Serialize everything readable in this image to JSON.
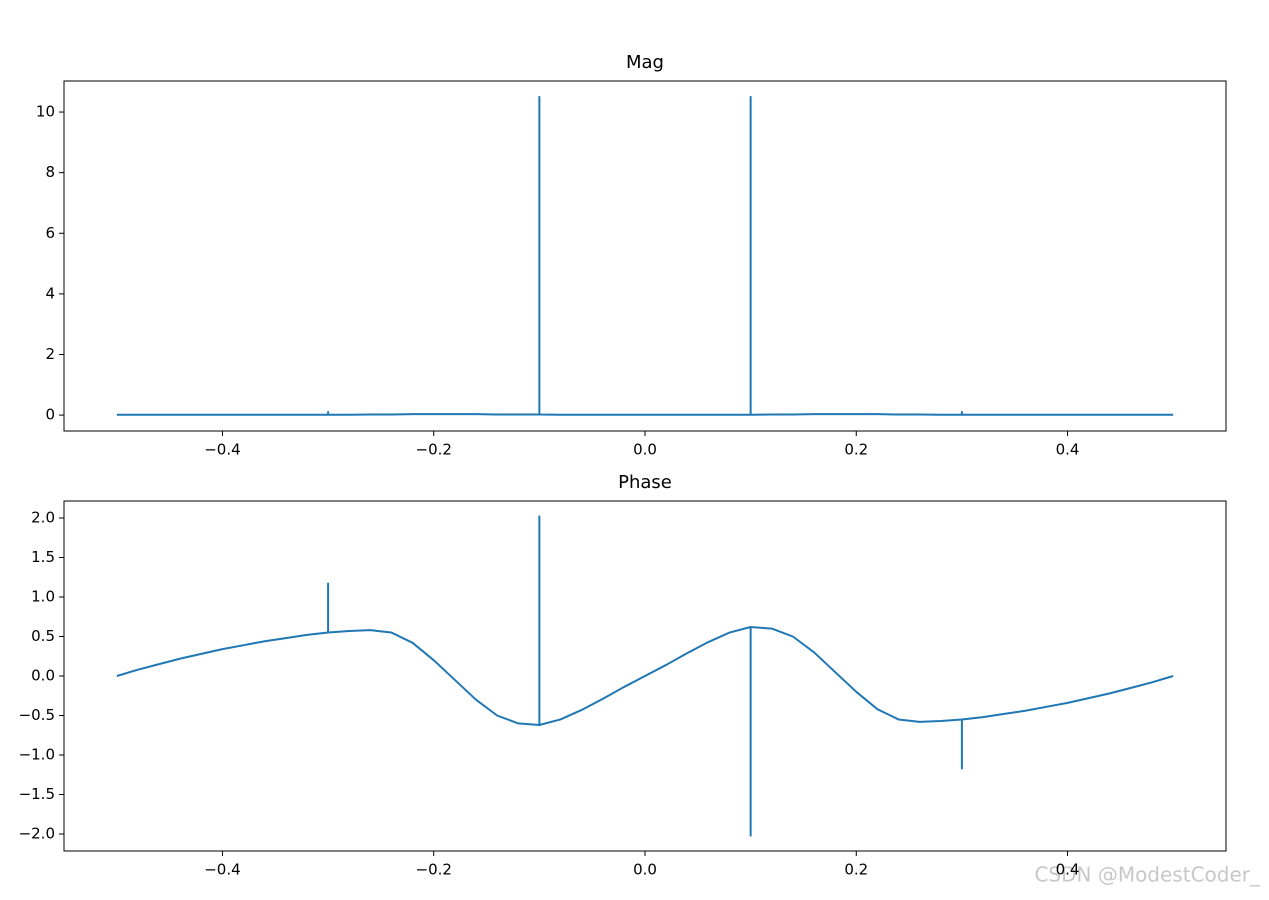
{
  "chart_data": [
    {
      "type": "line",
      "title": "Mag",
      "color": "#1f77b4",
      "x": [
        -0.5,
        -0.48,
        -0.46,
        -0.44,
        -0.42,
        -0.4,
        -0.38,
        -0.36,
        -0.34,
        -0.32,
        -0.3,
        -0.3,
        -0.3,
        -0.28,
        -0.26,
        -0.24,
        -0.22,
        -0.2,
        -0.18,
        -0.16,
        -0.14,
        -0.12,
        -0.1,
        -0.1,
        -0.1,
        -0.08,
        -0.06,
        -0.04,
        -0.02,
        0,
        0.02,
        0.04,
        0.06,
        0.08,
        0.1,
        0.1,
        0.1,
        0.12,
        0.14,
        0.16,
        0.18,
        0.2,
        0.22,
        0.24,
        0.26,
        0.28,
        0.3,
        0.3,
        0.3,
        0.32,
        0.34,
        0.36,
        0.38,
        0.4,
        0.42,
        0.44,
        0.46,
        0.48,
        0.5
      ],
      "values": [
        0.01,
        0.01,
        0.01,
        0.01,
        0.01,
        0.01,
        0.01,
        0.01,
        0.01,
        0.01,
        0.01,
        0.1,
        0.01,
        0.01,
        0.02,
        0.02,
        0.03,
        0.03,
        0.03,
        0.03,
        0.02,
        0.02,
        0.02,
        10.5,
        0.02,
        0.01,
        0.01,
        0.01,
        0.01,
        0.01,
        0.01,
        0.01,
        0.01,
        0.01,
        0.01,
        10.5,
        0.01,
        0.02,
        0.02,
        0.03,
        0.03,
        0.03,
        0.03,
        0.02,
        0.02,
        0.01,
        0.01,
        0.1,
        0.01,
        0.01,
        0.01,
        0.01,
        0.01,
        0.01,
        0.01,
        0.01,
        0.01,
        0.01,
        0.01
      ],
      "xlim": [
        -0.55,
        0.55
      ],
      "xticks": [
        {
          "value": -0.4,
          "label": "−0.4"
        },
        {
          "value": -0.2,
          "label": "−0.2"
        },
        {
          "value": 0,
          "label": "0.0"
        },
        {
          "value": 0.2,
          "label": "0.2"
        },
        {
          "value": 0.4,
          "label": "0.4"
        }
      ],
      "ylim": [
        -0.525,
        11.025
      ],
      "yticks": [
        0,
        2,
        4,
        6,
        8,
        10
      ]
    },
    {
      "type": "line",
      "title": "Phase",
      "color": "#1f77b4",
      "x": [
        -0.5,
        -0.48,
        -0.46,
        -0.44,
        -0.42,
        -0.4,
        -0.38,
        -0.36,
        -0.34,
        -0.32,
        -0.3,
        -0.3,
        -0.3,
        -0.28,
        -0.26,
        -0.24,
        -0.22,
        -0.2,
        -0.18,
        -0.16,
        -0.14,
        -0.12,
        -0.1,
        -0.1,
        -0.1,
        -0.08,
        -0.06,
        -0.04,
        -0.02,
        0,
        0.02,
        0.04,
        0.06,
        0.08,
        0.1,
        0.1,
        0.1,
        0.12,
        0.14,
        0.16,
        0.18,
        0.2,
        0.22,
        0.24,
        0.26,
        0.28,
        0.3,
        0.3,
        0.3,
        0.32,
        0.34,
        0.36,
        0.38,
        0.4,
        0.42,
        0.44,
        0.46,
        0.48,
        0.5
      ],
      "values": [
        0,
        0.08,
        0.15,
        0.22,
        0.28,
        0.34,
        0.39,
        0.44,
        0.48,
        0.52,
        0.55,
        1.17,
        0.55,
        0.57,
        0.58,
        0.55,
        0.42,
        0.2,
        -0.05,
        -0.3,
        -0.5,
        -0.6,
        -0.62,
        2.02,
        -0.62,
        -0.55,
        -0.43,
        -0.29,
        -0.14,
        0,
        0.14,
        0.29,
        0.43,
        0.55,
        0.62,
        -2.02,
        0.62,
        0.6,
        0.5,
        0.3,
        0.05,
        -0.2,
        -0.42,
        -0.55,
        -0.58,
        -0.57,
        -0.55,
        -1.17,
        -0.55,
        -0.52,
        -0.48,
        -0.44,
        -0.39,
        -0.34,
        -0.28,
        -0.22,
        -0.15,
        -0.08,
        0
      ],
      "xlim": [
        -0.55,
        0.55
      ],
      "xticks": [
        {
          "value": -0.4,
          "label": "−0.4"
        },
        {
          "value": -0.2,
          "label": "−0.2"
        },
        {
          "value": 0,
          "label": "0.0"
        },
        {
          "value": 0.2,
          "label": "0.2"
        },
        {
          "value": 0.4,
          "label": "0.4"
        }
      ],
      "ylim": [
        -2.215,
        2.215
      ],
      "yticks": [
        {
          "value": -2,
          "label": "−2.0"
        },
        {
          "value": -1.5,
          "label": "−1.5"
        },
        {
          "value": -1,
          "label": "−1.0"
        },
        {
          "value": -0.5,
          "label": "−0.5"
        },
        {
          "value": 0,
          "label": "0.0"
        },
        {
          "value": 0.5,
          "label": "0.5"
        },
        {
          "value": 1,
          "label": "1.0"
        },
        {
          "value": 1.5,
          "label": "1.5"
        },
        {
          "value": 2,
          "label": "2.0"
        }
      ]
    }
  ],
  "watermark": "CSDN @ModestCoder_"
}
